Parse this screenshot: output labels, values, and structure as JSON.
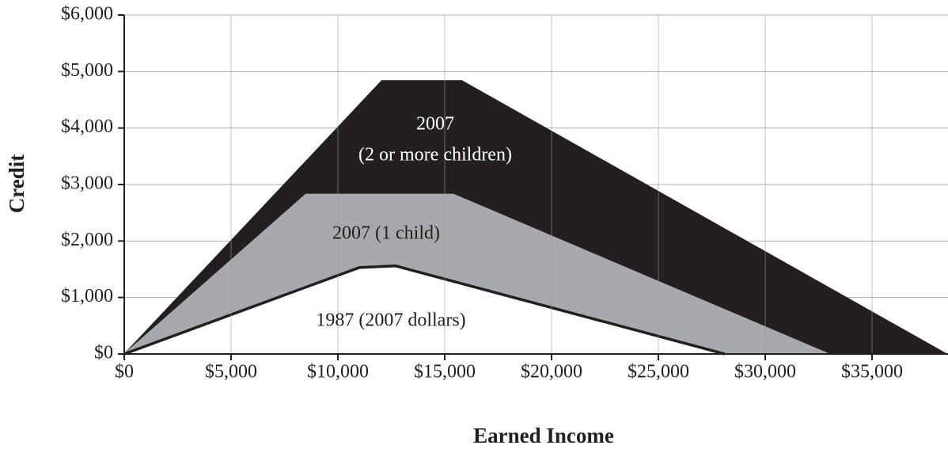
{
  "chart_data": {
    "type": "area",
    "xlabel": "Earned Income",
    "ylabel": "Credit",
    "xlim": [
      0,
      38500
    ],
    "ylim": [
      0,
      6000
    ],
    "xticks": [
      {
        "value": 0,
        "label": "$0"
      },
      {
        "value": 5000,
        "label": "$5,000"
      },
      {
        "value": 10000,
        "label": "$10,000"
      },
      {
        "value": 15000,
        "label": "$15,000"
      },
      {
        "value": 20000,
        "label": "$20,000"
      },
      {
        "value": 25000,
        "label": "$25,000"
      },
      {
        "value": 30000,
        "label": "$30,000"
      },
      {
        "value": 35000,
        "label": "$35,000"
      }
    ],
    "yticks": [
      {
        "value": 0,
        "label": "$0"
      },
      {
        "value": 1000,
        "label": "$1,000"
      },
      {
        "value": 2000,
        "label": "$2,000"
      },
      {
        "value": 3000,
        "label": "$3,000"
      },
      {
        "value": 4000,
        "label": "$4,000"
      },
      {
        "value": 5000,
        "label": "$5,000"
      },
      {
        "value": 6000,
        "label": "$6,000"
      }
    ],
    "grid": true,
    "series": [
      {
        "name": [
          "2007",
          "(2 or more children)"
        ],
        "color": "#231f20",
        "x": [
          0,
          12050,
          15800,
          38500
        ],
        "values": [
          0,
          4840,
          4840,
          0
        ]
      },
      {
        "name": [
          "2007 (1 child)"
        ],
        "color": "#a7a9ac",
        "x": [
          0,
          8500,
          15400,
          33000
        ],
        "values": [
          0,
          2830,
          2830,
          0
        ]
      },
      {
        "name": [
          "1987 (2007 dollars)"
        ],
        "color": "#ffffff",
        "x": [
          0,
          11000,
          12700,
          28100
        ],
        "values": [
          0,
          1530,
          1560,
          0
        ]
      }
    ]
  }
}
